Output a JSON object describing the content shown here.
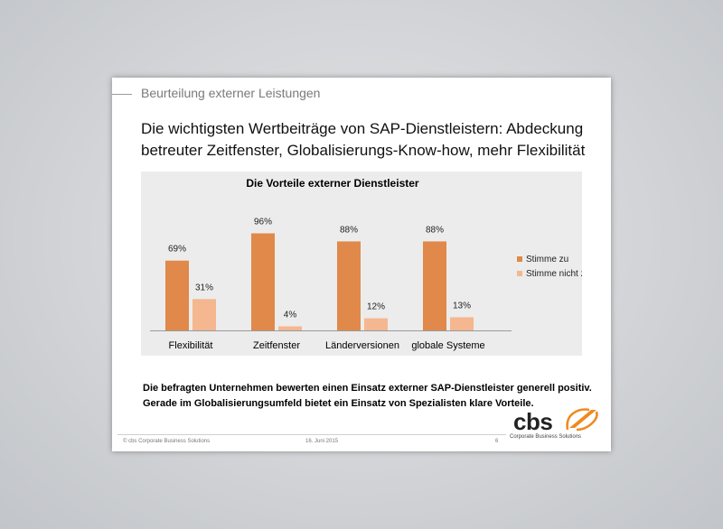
{
  "slide": {
    "section_title": "Beurteilung externer Leistungen",
    "headline": "Die wichtigsten Wertbeiträge von SAP-Dienstleistern: Abdeckung\nbetreuter Zeitfenster, Globalisierungs-Know-how, mehr Flexibilität",
    "summary": "Die befragten Unternehmen bewerten einen Einsatz externer SAP-Dienstleister generell positiv.\nGerade im Globalisierungsumfeld bietet ein Einsatz von Spezialisten klare Vorteile.",
    "footer_left": "© cbs Corporate Business Solutions",
    "footer_date": "16. Juni 2015",
    "page_number": "6",
    "logo_text": "cbs",
    "logo_subtitle": "Corporate Business Solutions"
  },
  "colors": {
    "stimme_zu": "#e0894a",
    "stimme_nicht_zu": "#f5b790",
    "logo_orange": "#ef8a1e"
  },
  "chart_data": {
    "type": "bar",
    "title": "Die Vorteile externer Dienstleister",
    "categories": [
      "Flexibilität",
      "Zeitfenster",
      "Länderversionen",
      "globale Systeme"
    ],
    "series": [
      {
        "name": "Stimme zu",
        "values": [
          69,
          96,
          88,
          88
        ],
        "labels": [
          "69%",
          "96%",
          "88%",
          "88%"
        ]
      },
      {
        "name": "Stimme nicht zu",
        "values": [
          31,
          4,
          12,
          13
        ],
        "labels": [
          "31%",
          "4%",
          "12%",
          "13%"
        ]
      }
    ],
    "ylim": [
      0,
      100
    ],
    "grid": false,
    "legend": "right"
  }
}
